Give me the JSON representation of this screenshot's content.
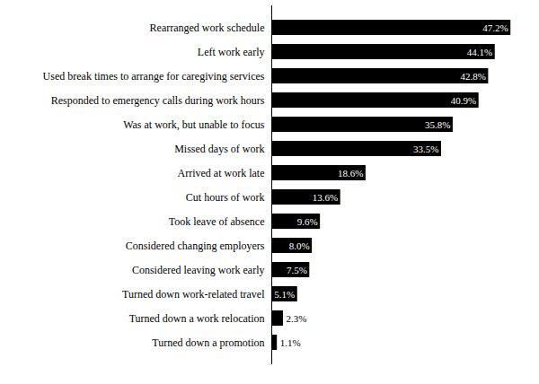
{
  "chart_data": {
    "type": "bar",
    "orientation": "horizontal",
    "categories": [
      "Rearranged work schedule",
      "Left work early",
      "Used break times to arrange for caregiving services",
      "Responded to emergency calls during work hours",
      "Was at work, but unable to focus",
      "Missed days of work",
      "Arrived at work late",
      "Cut hours of work",
      "Took leave of absence",
      "Considered changing employers",
      "Considered leaving work early",
      "Turned down work-related travel",
      "Turned down a work relocation",
      "Turned down a promotion"
    ],
    "values": [
      47.2,
      44.1,
      42.8,
      40.9,
      35.8,
      33.5,
      18.6,
      13.6,
      9.6,
      8.0,
      7.5,
      5.1,
      2.3,
      1.1
    ],
    "value_labels": [
      "47.2%",
      "44.1%",
      "42.8%",
      "40.9%",
      "35.8%",
      "33.5%",
      "18.6%",
      "13.6%",
      "9.6%",
      "8.0%",
      "7.5%",
      "5.1%",
      "2.3%",
      "1.1%"
    ],
    "color": "#000000",
    "xlim": [
      0,
      50
    ],
    "data_labels": true,
    "tick_labels": "y",
    "grid": false
  }
}
